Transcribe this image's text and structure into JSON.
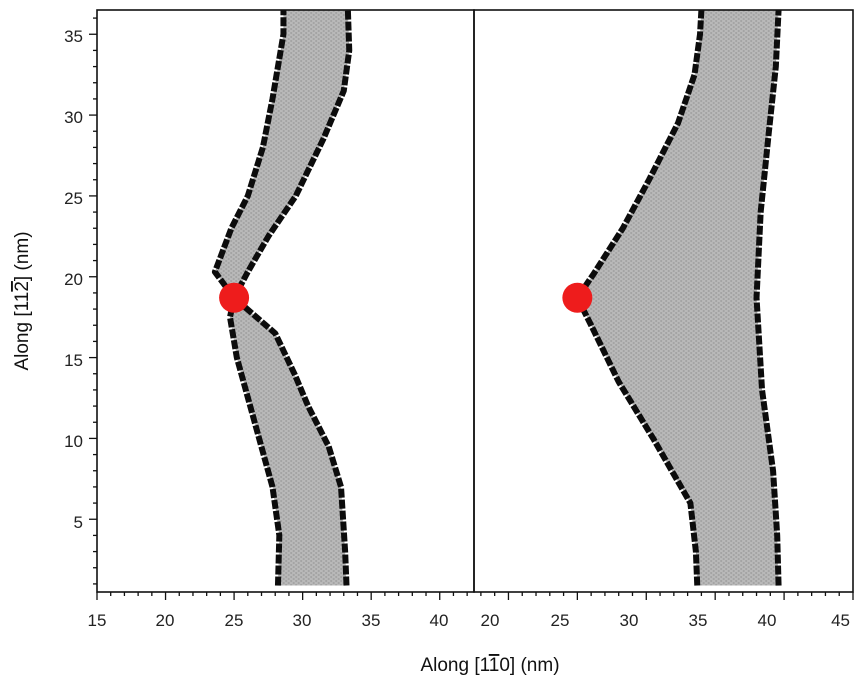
{
  "chart_data": [
    {
      "type": "scatter",
      "panel": "left",
      "xlim": [
        15,
        42.5
      ],
      "ylim": [
        0.5,
        36.5
      ],
      "x_ticks": [
        15,
        20,
        25,
        30,
        35,
        40
      ],
      "y_ticks": [
        5,
        10,
        15,
        20,
        25,
        30,
        35
      ],
      "y_tick_labels": [
        "5",
        "10",
        "15",
        "20",
        "25",
        "30",
        "35"
      ],
      "marker": {
        "x": 25,
        "y": 18.7,
        "color": "#ee1c1c"
      },
      "band": {
        "left_boundary": [
          [
            28.2,
            0.9
          ],
          [
            28.3,
            4
          ],
          [
            27.8,
            7
          ],
          [
            26.5,
            11
          ],
          [
            25.2,
            15
          ],
          [
            24.7,
            17.5
          ],
          [
            25,
            18.7
          ],
          [
            23.6,
            20.3
          ],
          [
            24.8,
            23
          ],
          [
            26,
            25
          ],
          [
            27.1,
            28
          ],
          [
            27.8,
            31
          ],
          [
            28.6,
            35
          ],
          [
            28.6,
            36.5
          ]
        ],
        "right_boundary": [
          [
            33.2,
            0.9
          ],
          [
            33.1,
            3
          ],
          [
            32.8,
            7
          ],
          [
            31.9,
            9.5
          ],
          [
            30.4,
            12
          ],
          [
            29.4,
            14
          ],
          [
            28,
            16.5
          ],
          [
            25,
            18.7
          ],
          [
            26,
            20.3
          ],
          [
            27.5,
            22.5
          ],
          [
            29.5,
            25
          ],
          [
            31.5,
            28.5
          ],
          [
            33,
            31.5
          ],
          [
            33.4,
            34
          ],
          [
            33.3,
            36.5
          ]
        ]
      }
    },
    {
      "type": "scatter",
      "panel": "right",
      "xlim": [
        17.5,
        45
      ],
      "ylim": [
        0.5,
        36.5
      ],
      "x_ticks": [
        20,
        25,
        30,
        35,
        40,
        45
      ],
      "marker": {
        "x": 25,
        "y": 18.7,
        "color": "#ee1c1c"
      },
      "band": {
        "left_boundary": [
          [
            33.7,
            0.9
          ],
          [
            33.6,
            3
          ],
          [
            33.2,
            6
          ],
          [
            30.5,
            10
          ],
          [
            28,
            13.5
          ],
          [
            26,
            17
          ],
          [
            25,
            18.7
          ],
          [
            26.2,
            20.2
          ],
          [
            28.3,
            23
          ],
          [
            30.2,
            26
          ],
          [
            32.3,
            29.5
          ],
          [
            33.5,
            32.5
          ],
          [
            33.9,
            35
          ],
          [
            34,
            36.5
          ]
        ],
        "right_boundary": [
          [
            39.6,
            0.9
          ],
          [
            39.5,
            4
          ],
          [
            39.2,
            8
          ],
          [
            38.4,
            13
          ],
          [
            38,
            18.7
          ],
          [
            38.3,
            24
          ],
          [
            38.9,
            29
          ],
          [
            39.4,
            33
          ],
          [
            39.6,
            36.5
          ]
        ]
      }
    }
  ],
  "x_tick_labels": {
    "left": [
      "15",
      "20",
      "25",
      "30",
      "35",
      "40"
    ],
    "right": [
      "20",
      "25",
      "30",
      "35",
      "40",
      "45"
    ]
  },
  "labels": {
    "xlabel": "Along [1̅1̅0] (nm)",
    "xlabel_pre": "Along [1",
    "xlabel_bar": "1",
    "xlabel_post": "0] (nm)",
    "ylabel": "Along [112̅] (nm)",
    "ylabel_pre": "Along [11",
    "ylabel_bar": "2",
    "ylabel_post": "] (nm)"
  },
  "colors": {
    "grain_fill": "#b8b8b8",
    "grain_hatch": "#9a9a9a",
    "boundary_atoms": "#0c0c0c",
    "marker": "#ee1c1c",
    "frame": "#111111"
  }
}
